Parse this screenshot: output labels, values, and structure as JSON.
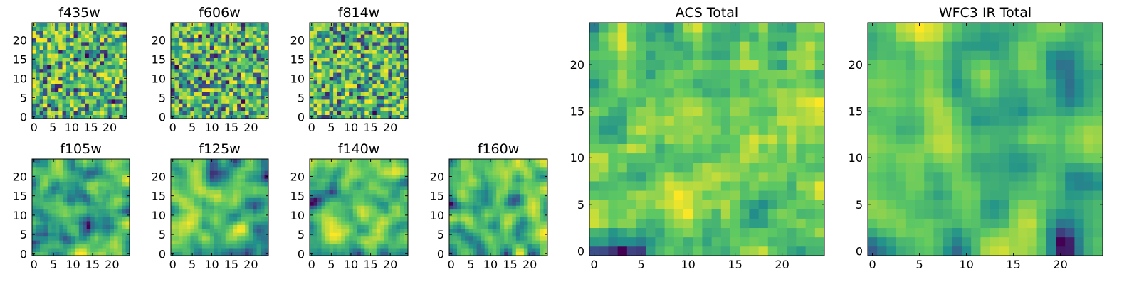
{
  "figure": {
    "colormap": "viridis",
    "colormap_stops": [
      "#440154",
      "#3b528b",
      "#21918c",
      "#5ec962",
      "#fde725"
    ]
  },
  "chart_data": [
    {
      "type": "heatmap",
      "title": "f435w",
      "grid_size": 25,
      "seed": 11,
      "smoothness": 0,
      "xticks": [
        0,
        5,
        10,
        15,
        20
      ],
      "yticks": [
        0,
        5,
        10,
        15,
        20
      ],
      "xlim": [
        -0.5,
        24.5
      ],
      "ylim": [
        -0.5,
        24.5
      ],
      "colormap": "viridis"
    },
    {
      "type": "heatmap",
      "title": "f606w",
      "grid_size": 25,
      "seed": 23,
      "smoothness": 0,
      "xticks": [
        0,
        5,
        10,
        15,
        20
      ],
      "yticks": [
        0,
        5,
        10,
        15,
        20
      ],
      "xlim": [
        -0.5,
        24.5
      ],
      "ylim": [
        -0.5,
        24.5
      ],
      "colormap": "viridis"
    },
    {
      "type": "heatmap",
      "title": "f814w",
      "grid_size": 25,
      "seed": 37,
      "smoothness": 0,
      "xticks": [
        0,
        5,
        10,
        15,
        20
      ],
      "yticks": [
        0,
        5,
        10,
        15,
        20
      ],
      "xlim": [
        -0.5,
        24.5
      ],
      "ylim": [
        -0.5,
        24.5
      ],
      "colormap": "viridis"
    },
    {
      "type": "heatmap",
      "title": "f105w",
      "grid_size": 25,
      "seed": 41,
      "smoothness": 2,
      "xticks": [
        0,
        5,
        10,
        15,
        20
      ],
      "yticks": [
        0,
        5,
        10,
        15,
        20
      ],
      "xlim": [
        -0.5,
        24.5
      ],
      "ylim": [
        -0.5,
        24.5
      ],
      "colormap": "viridis"
    },
    {
      "type": "heatmap",
      "title": "f125w",
      "grid_size": 25,
      "seed": 53,
      "smoothness": 2,
      "xticks": [
        0,
        5,
        10,
        15,
        20
      ],
      "yticks": [
        0,
        5,
        10,
        15,
        20
      ],
      "xlim": [
        -0.5,
        24.5
      ],
      "ylim": [
        -0.5,
        24.5
      ],
      "colormap": "viridis"
    },
    {
      "type": "heatmap",
      "title": "f140w",
      "grid_size": 25,
      "seed": 67,
      "smoothness": 2,
      "xticks": [
        0,
        5,
        10,
        15,
        20
      ],
      "yticks": [
        0,
        5,
        10,
        15,
        20
      ],
      "xlim": [
        -0.5,
        24.5
      ],
      "ylim": [
        -0.5,
        24.5
      ],
      "colormap": "viridis"
    },
    {
      "type": "heatmap",
      "title": "f160w",
      "grid_size": 25,
      "seed": 79,
      "smoothness": 2,
      "xticks": [
        0,
        5,
        10,
        15,
        20
      ],
      "yticks": [
        0,
        5,
        10,
        15,
        20
      ],
      "xlim": [
        -0.5,
        24.5
      ],
      "ylim": [
        -0.5,
        24.5
      ],
      "colormap": "viridis"
    },
    {
      "type": "heatmap",
      "title": "ACS Total",
      "grid_size": 25,
      "seed": 97,
      "smoothness": 1,
      "xticks": [
        0,
        5,
        10,
        15,
        20
      ],
      "yticks": [
        0,
        5,
        10,
        15,
        20
      ],
      "xlim": [
        -0.5,
        24.5
      ],
      "ylim": [
        -0.5,
        24.5
      ],
      "colormap": "viridis"
    },
    {
      "type": "heatmap",
      "title": "WFC3 IR Total",
      "grid_size": 25,
      "seed": 131,
      "smoothness": 2,
      "xticks": [
        0,
        5,
        10,
        15,
        20
      ],
      "yticks": [
        0,
        5,
        10,
        15,
        20
      ],
      "xlim": [
        -0.5,
        24.5
      ],
      "ylim": [
        -0.5,
        24.5
      ],
      "colormap": "viridis"
    }
  ]
}
